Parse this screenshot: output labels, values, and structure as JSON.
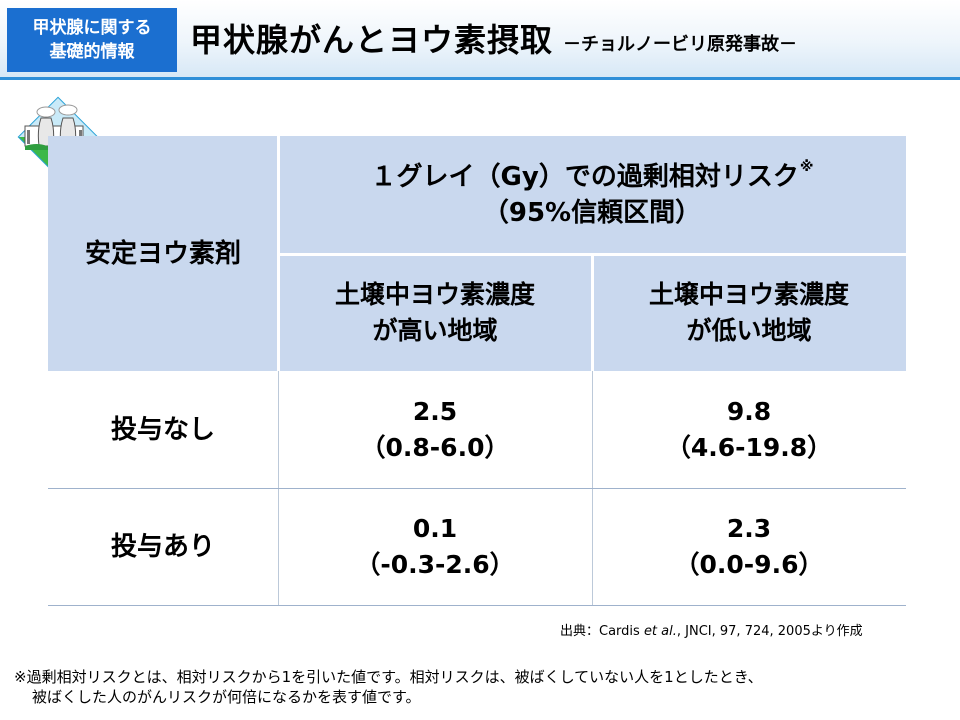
{
  "header": {
    "badge_line1": "甲状腺に関する",
    "badge_line2": "基礎的情報",
    "title": "甲状腺がんとヨウ素摂取",
    "subtitle": "－チョルノービリ原発事故－"
  },
  "table": {
    "row_header_label": "安定ヨウ素剤",
    "top_header_line1": "１グレイ（Gy）での過剰相対リスク",
    "top_header_mark": "※",
    "top_header_line2": "（95%信頼区間）",
    "col1_line1": "土壌中ヨウ素濃度",
    "col1_line2": "が高い地域",
    "col2_line1": "土壌中ヨウ素濃度",
    "col2_line2": "が低い地域",
    "rows": [
      {
        "label": "投与なし",
        "high_value": "2.5",
        "high_ci": "（0.8-6.0）",
        "low_value": "9.8",
        "low_ci": "（4.6-19.8）"
      },
      {
        "label": "投与あり",
        "high_value": "0.1",
        "high_ci": "（-0.3-2.6）",
        "low_value": "2.3",
        "low_ci": "（0.0-9.6）"
      }
    ]
  },
  "source": {
    "prefix": "出典：Cardis ",
    "etal": "et al.",
    "suffix": ", JNCI,  97, 724, 2005より作成"
  },
  "footnote": {
    "line1": "※過剰相対リスクとは、相対リスクから1を引いた値です。相対リスクは、被ばくしていない人を1としたとき、",
    "line2": "被ばくした人のがんリスクが何倍になるかを表す値です。"
  },
  "colors": {
    "badge": "#1b6fd0",
    "header_cell": "#c9d8ee",
    "header_rule": "#2f8fd8"
  },
  "icons": {
    "plant": "nuclear-plant-icon"
  }
}
